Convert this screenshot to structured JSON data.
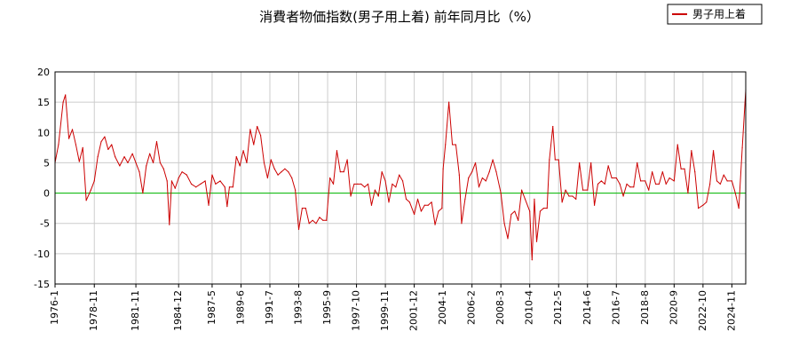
{
  "chart_data": {
    "type": "line",
    "title": "消費者物価指数(男子用上着) 前年同月比（%）",
    "xlabel": "",
    "ylabel": "",
    "x_range": [
      "1976-1",
      "2025-11"
    ],
    "ylim": [
      -15,
      20
    ],
    "y_ticks": [
      20,
      15,
      10,
      5,
      0,
      -5,
      -10,
      -15
    ],
    "x_ticks": [
      "1976-1",
      "1978-11",
      "1981-11",
      "1984-12",
      "1987-5",
      "1989-6",
      "1991-7",
      "1993-8",
      "1995-9",
      "1997-10",
      "1999-11",
      "2001-12",
      "2004-1",
      "2006-2",
      "2008-3",
      "2010-4",
      "2012-5",
      "2014-6",
      "2016-7",
      "2018-8",
      "2020-9",
      "2022-10",
      "2024-11"
    ],
    "grid": true,
    "zero_line": true,
    "legend": {
      "position": "top-right",
      "entries": [
        "男子用上着"
      ]
    },
    "colors": {
      "series": "#cc0000",
      "zero": "#00bb00",
      "grid": "#cccccc"
    },
    "series": [
      {
        "name": "男子用上着",
        "points": [
          [
            "1976-1",
            5.0
          ],
          [
            "1976-4",
            8.0
          ],
          [
            "1976-8",
            15.0
          ],
          [
            "1976-10",
            16.2
          ],
          [
            "1977-1",
            9.0
          ],
          [
            "1977-4",
            10.5
          ],
          [
            "1977-7",
            8.0
          ],
          [
            "1977-10",
            5.2
          ],
          [
            "1978-1",
            7.5
          ],
          [
            "1978-4",
            -1.2
          ],
          [
            "1978-8",
            0.5
          ],
          [
            "1978-11",
            2.0
          ],
          [
            "1979-2",
            6.0
          ],
          [
            "1979-5",
            8.5
          ],
          [
            "1979-8",
            9.3
          ],
          [
            "1979-11",
            7.2
          ],
          [
            "1980-2",
            8.0
          ],
          [
            "1980-5",
            6.0
          ],
          [
            "1980-9",
            4.5
          ],
          [
            "1981-1",
            6.0
          ],
          [
            "1981-4",
            5.0
          ],
          [
            "1981-8",
            6.5
          ],
          [
            "1981-11",
            5.0
          ],
          [
            "1982-2",
            3.5
          ],
          [
            "1982-5",
            0.0
          ],
          [
            "1982-8",
            4.5
          ],
          [
            "1982-11",
            6.5
          ],
          [
            "1983-2",
            5.0
          ],
          [
            "1983-5",
            8.5
          ],
          [
            "1983-8",
            5.0
          ],
          [
            "1983-11",
            4.0
          ],
          [
            "1984-2",
            2.0
          ],
          [
            "1984-4",
            -5.2
          ],
          [
            "1984-6",
            2.0
          ],
          [
            "1984-9",
            0.8
          ],
          [
            "1984-12",
            2.5
          ],
          [
            "1985-3",
            3.5
          ],
          [
            "1985-7",
            3.0
          ],
          [
            "1985-11",
            1.5
          ],
          [
            "1986-3",
            1.0
          ],
          [
            "1986-7",
            1.5
          ],
          [
            "1986-11",
            2.0
          ],
          [
            "1987-2",
            -2.0
          ],
          [
            "1987-5",
            3.0
          ],
          [
            "1987-8",
            1.5
          ],
          [
            "1987-12",
            2.0
          ],
          [
            "1988-4",
            1.0
          ],
          [
            "1988-6",
            -2.2
          ],
          [
            "1988-8",
            1.0
          ],
          [
            "1988-11",
            1.0
          ],
          [
            "1989-2",
            6.0
          ],
          [
            "1989-5",
            4.5
          ],
          [
            "1989-8",
            7.0
          ],
          [
            "1989-11",
            5.0
          ],
          [
            "1990-2",
            10.5
          ],
          [
            "1990-5",
            8.0
          ],
          [
            "1990-8",
            11.0
          ],
          [
            "1990-11",
            9.5
          ],
          [
            "1991-2",
            5.0
          ],
          [
            "1991-5",
            2.5
          ],
          [
            "1991-8",
            5.5
          ],
          [
            "1991-11",
            4.0
          ],
          [
            "1992-2",
            3.0
          ],
          [
            "1992-5",
            3.5
          ],
          [
            "1992-8",
            4.0
          ],
          [
            "1992-11",
            3.5
          ],
          [
            "1993-2",
            2.5
          ],
          [
            "1993-5",
            0.5
          ],
          [
            "1993-8",
            -6.0
          ],
          [
            "1993-11",
            -2.5
          ],
          [
            "1994-2",
            -2.5
          ],
          [
            "1994-5",
            -5.0
          ],
          [
            "1994-8",
            -4.5
          ],
          [
            "1994-11",
            -5.0
          ],
          [
            "1995-2",
            -4.0
          ],
          [
            "1995-5",
            -4.5
          ],
          [
            "1995-8",
            -4.5
          ],
          [
            "1995-11",
            2.5
          ],
          [
            "1996-2",
            1.5
          ],
          [
            "1996-5",
            7.0
          ],
          [
            "1996-8",
            3.5
          ],
          [
            "1996-11",
            3.5
          ],
          [
            "1997-2",
            5.5
          ],
          [
            "1997-5",
            -0.5
          ],
          [
            "1997-8",
            1.5
          ],
          [
            "1997-11",
            1.5
          ],
          [
            "1998-2",
            1.5
          ],
          [
            "1998-5",
            1.0
          ],
          [
            "1998-8",
            1.5
          ],
          [
            "1998-11",
            -2.0
          ],
          [
            "1999-2",
            0.5
          ],
          [
            "1999-5",
            -0.5
          ],
          [
            "1999-8",
            3.5
          ],
          [
            "1999-11",
            2.0
          ],
          [
            "2000-2",
            -1.5
          ],
          [
            "2000-5",
            1.5
          ],
          [
            "2000-8",
            1.0
          ],
          [
            "2000-11",
            3.0
          ],
          [
            "2001-2",
            2.0
          ],
          [
            "2001-5",
            -1.0
          ],
          [
            "2001-8",
            -1.5
          ],
          [
            "2001-12",
            -3.5
          ],
          [
            "2002-3",
            -1.0
          ],
          [
            "2002-6",
            -3.0
          ],
          [
            "2002-9",
            -2.0
          ],
          [
            "2002-12",
            -2.0
          ],
          [
            "2003-3",
            -1.5
          ],
          [
            "2003-6",
            -5.2
          ],
          [
            "2003-9",
            -3.0
          ],
          [
            "2003-12",
            -2.5
          ],
          [
            "2004-1",
            4.0
          ],
          [
            "2004-3",
            8.0
          ],
          [
            "2004-6",
            15.0
          ],
          [
            "2004-9",
            8.0
          ],
          [
            "2004-12",
            8.0
          ],
          [
            "2005-3",
            3.0
          ],
          [
            "2005-5",
            -5.0
          ],
          [
            "2005-8",
            -1.0
          ],
          [
            "2005-11",
            2.5
          ],
          [
            "2006-2",
            3.5
          ],
          [
            "2006-5",
            5.0
          ],
          [
            "2006-8",
            1.0
          ],
          [
            "2006-11",
            2.5
          ],
          [
            "2007-2",
            2.0
          ],
          [
            "2007-5",
            3.5
          ],
          [
            "2007-8",
            5.5
          ],
          [
            "2007-11",
            3.5
          ],
          [
            "2008-3",
            0.0
          ],
          [
            "2008-6",
            -5.0
          ],
          [
            "2008-9",
            -7.5
          ],
          [
            "2008-12",
            -3.5
          ],
          [
            "2009-3",
            -3.0
          ],
          [
            "2009-6",
            -4.5
          ],
          [
            "2009-9",
            0.5
          ],
          [
            "2009-12",
            -1.0
          ],
          [
            "2010-4",
            -3.0
          ],
          [
            "2010-6",
            -11.0
          ],
          [
            "2010-8",
            -1.0
          ],
          [
            "2010-10",
            -8.0
          ],
          [
            "2011-1",
            -3.0
          ],
          [
            "2011-4",
            -2.5
          ],
          [
            "2011-7",
            -2.5
          ],
          [
            "2011-9",
            5.5
          ],
          [
            "2011-12",
            11.0
          ],
          [
            "2012-2",
            5.5
          ],
          [
            "2012-5",
            5.5
          ],
          [
            "2012-8",
            -1.5
          ],
          [
            "2012-11",
            0.5
          ],
          [
            "2013-2",
            -0.5
          ],
          [
            "2013-5",
            -0.5
          ],
          [
            "2013-8",
            -1.0
          ],
          [
            "2013-11",
            5.0
          ],
          [
            "2014-2",
            0.5
          ],
          [
            "2014-6",
            0.5
          ],
          [
            "2014-9",
            5.0
          ],
          [
            "2014-12",
            -2.0
          ],
          [
            "2015-3",
            1.5
          ],
          [
            "2015-6",
            2.0
          ],
          [
            "2015-9",
            1.5
          ],
          [
            "2015-12",
            4.5
          ],
          [
            "2016-3",
            2.5
          ],
          [
            "2016-7",
            2.5
          ],
          [
            "2016-10",
            1.5
          ],
          [
            "2017-1",
            -0.5
          ],
          [
            "2017-4",
            1.5
          ],
          [
            "2017-7",
            1.0
          ],
          [
            "2017-10",
            1.0
          ],
          [
            "2018-1",
            5.0
          ],
          [
            "2018-4",
            2.0
          ],
          [
            "2018-8",
            2.0
          ],
          [
            "2018-11",
            0.5
          ],
          [
            "2019-2",
            3.5
          ],
          [
            "2019-5",
            1.5
          ],
          [
            "2019-8",
            1.5
          ],
          [
            "2019-11",
            3.5
          ],
          [
            "2020-2",
            1.5
          ],
          [
            "2020-5",
            2.5
          ],
          [
            "2020-9",
            2.0
          ],
          [
            "2020-12",
            8.0
          ],
          [
            "2021-3",
            4.0
          ],
          [
            "2021-6",
            4.0
          ],
          [
            "2021-9",
            0.0
          ],
          [
            "2021-12",
            7.0
          ],
          [
            "2022-3",
            3.5
          ],
          [
            "2022-6",
            -2.5
          ],
          [
            "2022-10",
            -2.0
          ],
          [
            "2023-1",
            -1.5
          ],
          [
            "2023-4",
            1.5
          ],
          [
            "2023-7",
            7.0
          ],
          [
            "2023-10",
            2.0
          ],
          [
            "2024-1",
            1.5
          ],
          [
            "2024-4",
            3.0
          ],
          [
            "2024-7",
            2.0
          ],
          [
            "2024-11",
            2.0
          ],
          [
            "2025-2",
            0.0
          ],
          [
            "2025-5",
            -2.5
          ],
          [
            "2025-8",
            7.5
          ],
          [
            "2025-11",
            17.0
          ]
        ]
      }
    ]
  }
}
